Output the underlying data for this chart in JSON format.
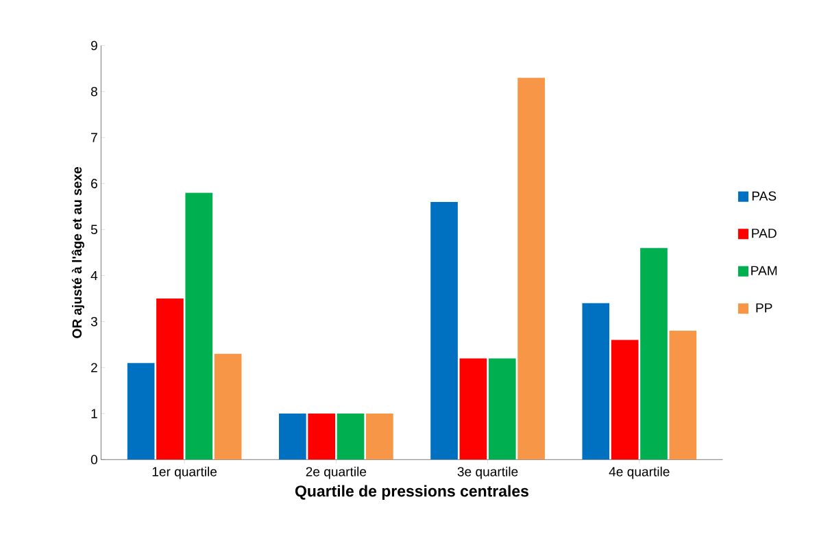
{
  "chart_data": {
    "type": "bar",
    "xlabel": "Quartile de  pressions  centrales",
    "ylabel": "OR ajusté à l'âge et au sexe",
    "categories": [
      "1er quartile",
      "2e quartile",
      "3e quartile",
      "4e quartile"
    ],
    "series": [
      {
        "name": "PAS",
        "color": "#0070c0",
        "values": [
          2.1,
          1,
          5.6,
          3.4
        ]
      },
      {
        "name": "PAD",
        "color": "#ff0000",
        "values": [
          3.5,
          1,
          2.2,
          2.6
        ]
      },
      {
        "name": "PAM",
        "color": "#00b050",
        "values": [
          5.8,
          1,
          2.2,
          4.6
        ]
      },
      {
        "name": "PP",
        "color": "#f79646",
        "values": [
          2.3,
          1,
          8.3,
          2.8
        ]
      }
    ],
    "ylim": [
      0,
      9
    ],
    "yticks": [
      0,
      1,
      2,
      3,
      4,
      5,
      6,
      7,
      8,
      9
    ],
    "grid": false,
    "legend": "right"
  }
}
